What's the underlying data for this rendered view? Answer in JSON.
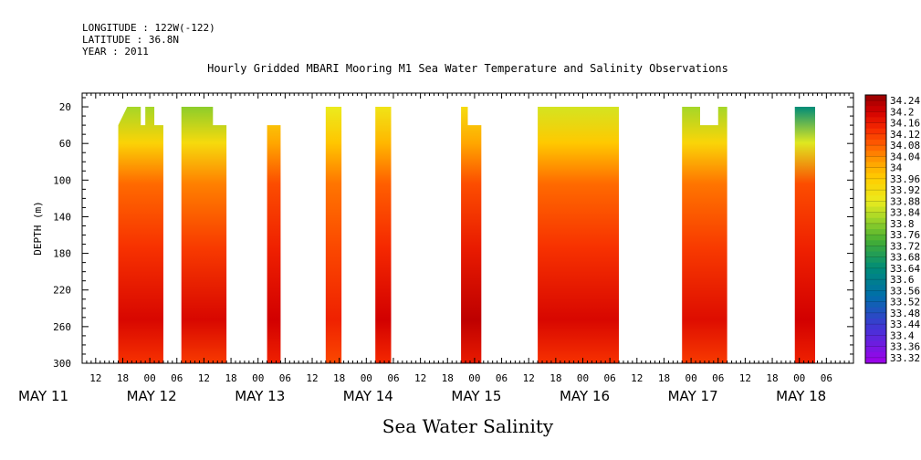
{
  "header": {
    "longitude": "LONGITUDE : 122W(-122)",
    "latitude": "LATITUDE : 36.8N",
    "year": "YEAR : 2011"
  },
  "chart_data": {
    "type": "heatmap",
    "title": "Hourly Gridded MBARI Mooring M1 Sea Water Temperature and Salinity Observations",
    "xlabel": "Sea Water Salinity",
    "ylabel": "DEPTH (m)",
    "ylim": [
      300,
      5
    ],
    "y_ticks": [
      20,
      60,
      100,
      140,
      180,
      220,
      260,
      300
    ],
    "x_hour_ticks": [
      {
        "h": 12,
        "label": "12"
      },
      {
        "h": 18,
        "label": "18"
      },
      {
        "h": 24,
        "label": "00"
      },
      {
        "h": 30,
        "label": "06"
      },
      {
        "h": 36,
        "label": "12"
      },
      {
        "h": 42,
        "label": "18"
      },
      {
        "h": 48,
        "label": "00"
      },
      {
        "h": 54,
        "label": "06"
      },
      {
        "h": 60,
        "label": "12"
      },
      {
        "h": 66,
        "label": "18"
      },
      {
        "h": 72,
        "label": "00"
      },
      {
        "h": 78,
        "label": "06"
      },
      {
        "h": 84,
        "label": "12"
      },
      {
        "h": 90,
        "label": "18"
      },
      {
        "h": 96,
        "label": "00"
      },
      {
        "h": 102,
        "label": "06"
      },
      {
        "h": 108,
        "label": "12"
      },
      {
        "h": 114,
        "label": "18"
      },
      {
        "h": 120,
        "label": "00"
      },
      {
        "h": 126,
        "label": "06"
      },
      {
        "h": 132,
        "label": "12"
      },
      {
        "h": 138,
        "label": "18"
      },
      {
        "h": 144,
        "label": "00"
      },
      {
        "h": 150,
        "label": "06"
      },
      {
        "h": 156,
        "label": "12"
      },
      {
        "h": 162,
        "label": "18"
      },
      {
        "h": 168,
        "label": "00"
      },
      {
        "h": 174,
        "label": "06"
      }
    ],
    "x_day_labels": [
      {
        "h": 0,
        "label": "MAY 11"
      },
      {
        "h": 24,
        "label": "MAY 12"
      },
      {
        "h": 48,
        "label": "MAY 13"
      },
      {
        "h": 72,
        "label": "MAY 14"
      },
      {
        "h": 96,
        "label": "MAY 15"
      },
      {
        "h": 120,
        "label": "MAY 16"
      },
      {
        "h": 144,
        "label": "MAY 17"
      },
      {
        "h": 168,
        "label": "MAY 18"
      }
    ],
    "x_range_hours": [
      9,
      180
    ],
    "colorbar": {
      "levels": [
        34.24,
        34.2,
        34.16,
        34.12,
        34.08,
        34.04,
        34,
        33.96,
        33.92,
        33.88,
        33.84,
        33.8,
        33.76,
        33.72,
        33.68,
        33.64,
        33.6,
        33.56,
        33.52,
        33.48,
        33.44,
        33.4,
        33.36,
        33.32
      ],
      "min": 33.3,
      "max": 34.26
    },
    "data_segments": [
      {
        "start": 17,
        "end": 27,
        "top_profile": [
          [
            17,
            40
          ],
          [
            19,
            20
          ],
          [
            22,
            20
          ],
          [
            22,
            40
          ],
          [
            23,
            40
          ],
          [
            23,
            20
          ],
          [
            25,
            20
          ],
          [
            25,
            40
          ],
          [
            27,
            40
          ]
        ],
        "surface": 33.82,
        "mid": 34.07,
        "deep": 34.19
      },
      {
        "start": 31,
        "end": 41,
        "top_profile": [
          [
            31,
            20
          ],
          [
            38,
            20
          ],
          [
            38,
            40
          ],
          [
            41,
            40
          ]
        ],
        "surface": 33.8,
        "mid": 34.05,
        "deep": 34.19
      },
      {
        "start": 50,
        "end": 53,
        "top_profile": [
          [
            50,
            40
          ],
          [
            53,
            40
          ]
        ],
        "surface": 33.92,
        "mid": 34.1,
        "deep": 34.2
      },
      {
        "start": 63,
        "end": 66.5,
        "top_profile": [
          [
            63,
            20
          ],
          [
            66.5,
            20
          ]
        ],
        "surface": 33.88,
        "mid": 34.06,
        "deep": 34.15
      },
      {
        "start": 74,
        "end": 77.5,
        "top_profile": [
          [
            74,
            20
          ],
          [
            77.5,
            20
          ]
        ],
        "surface": 33.9,
        "mid": 34.08,
        "deep": 34.2
      },
      {
        "start": 93,
        "end": 97.5,
        "top_profile": [
          [
            93,
            20
          ],
          [
            94.5,
            20
          ],
          [
            94.5,
            40
          ],
          [
            97.5,
            40
          ]
        ],
        "surface": 33.92,
        "mid": 34.1,
        "deep": 34.22
      },
      {
        "start": 110,
        "end": 128,
        "top_profile": [
          [
            110,
            20
          ],
          [
            128,
            20
          ]
        ],
        "surface": 33.86,
        "mid": 34.07,
        "deep": 34.19
      },
      {
        "start": 142,
        "end": 152,
        "top_profile": [
          [
            142,
            20
          ],
          [
            146,
            20
          ],
          [
            146,
            40
          ],
          [
            150,
            40
          ],
          [
            150,
            20
          ],
          [
            152,
            20
          ]
        ],
        "surface": 33.82,
        "mid": 34.06,
        "deep": 34.18
      },
      {
        "start": 167,
        "end": 171.5,
        "top_profile": [
          [
            167,
            20
          ],
          [
            171.5,
            20
          ]
        ],
        "surface": 33.64,
        "mid": 34.1,
        "deep": 34.2
      }
    ]
  }
}
